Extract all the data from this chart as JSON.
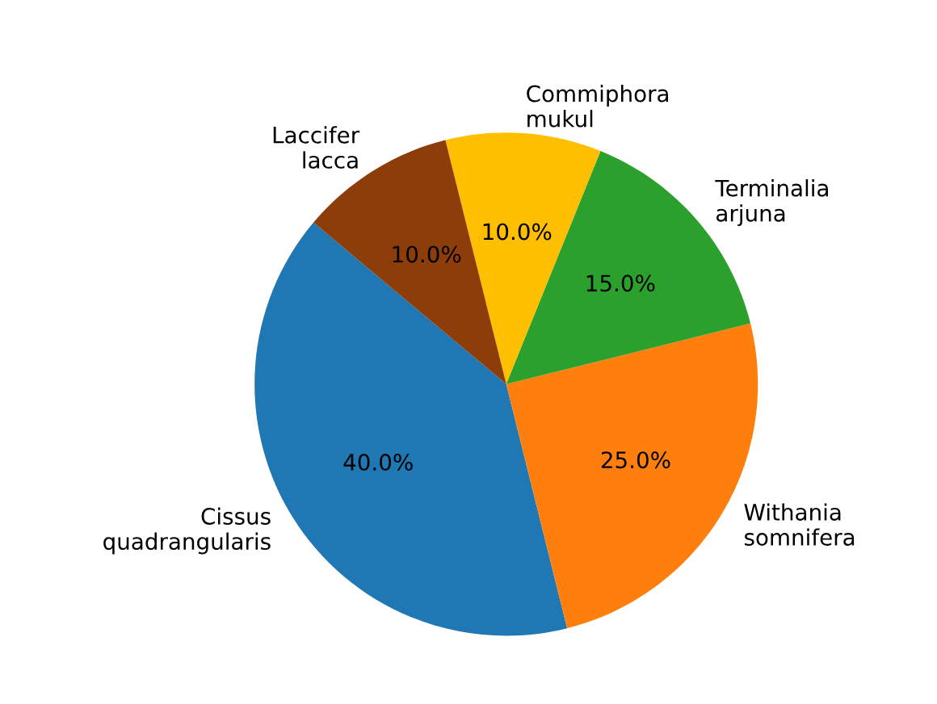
{
  "chart_data": {
    "type": "pie",
    "categories": [
      "Cissus\nquadrangularis",
      "Withania\nsomnifera",
      "Terminalia\narjuna",
      "Commiphora\nmukul",
      "Laccifer\nlacca"
    ],
    "values": [
      40,
      25,
      15,
      10,
      10
    ],
    "value_labels": [
      "40.0%",
      "25.0%",
      "15.0%",
      "10.0%",
      "10.0%"
    ],
    "colors": [
      "#1f77b4",
      "#ff7f0e",
      "#2ca02c",
      "#ffbf00",
      "#8c3d0a"
    ]
  }
}
